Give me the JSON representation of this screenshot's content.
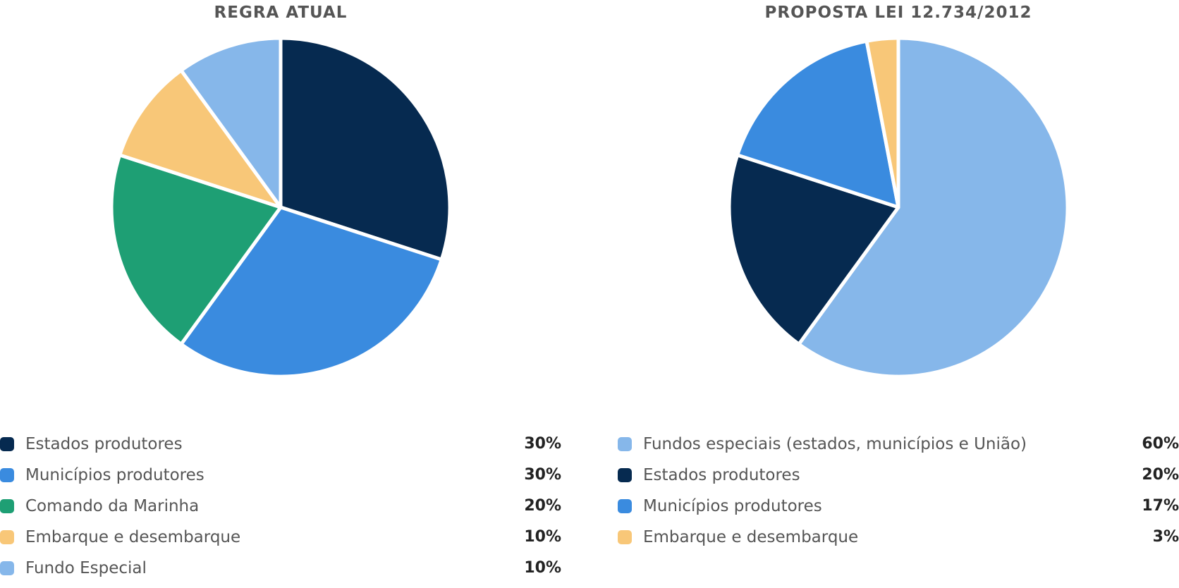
{
  "chart_data": [
    {
      "type": "pie",
      "title": "REGRA ATUAL",
      "slices": [
        {
          "label": "Estados produtores",
          "value": 30,
          "value_label": "30%",
          "color": "#062a50"
        },
        {
          "label": "Municípios produtores",
          "value": 30,
          "value_label": "30%",
          "color": "#3a8bdf"
        },
        {
          "label": "Comando da Marinha",
          "value": 20,
          "value_label": "20%",
          "color": "#1e9f74"
        },
        {
          "label": "Embarque e desembarque",
          "value": 10,
          "value_label": "10%",
          "color": "#f8c778"
        },
        {
          "label": "Fundo Especial",
          "value": 10,
          "value_label": "10%",
          "color": "#86b7ea"
        }
      ]
    },
    {
      "type": "pie",
      "title": "PROPOSTA LEI 12.734/2012",
      "slices": [
        {
          "label": "Fundos especiais (estados, municípios e União)",
          "value": 60,
          "value_label": "60%",
          "color": "#86b7ea"
        },
        {
          "label": "Estados produtores",
          "value": 20,
          "value_label": "20%",
          "color": "#062a50"
        },
        {
          "label": "Municípios produtores",
          "value": 17,
          "value_label": "17%",
          "color": "#3a8bdf"
        },
        {
          "label": "Embarque e desembarque",
          "value": 3,
          "value_label": "3%",
          "color": "#f8c778"
        }
      ]
    }
  ]
}
